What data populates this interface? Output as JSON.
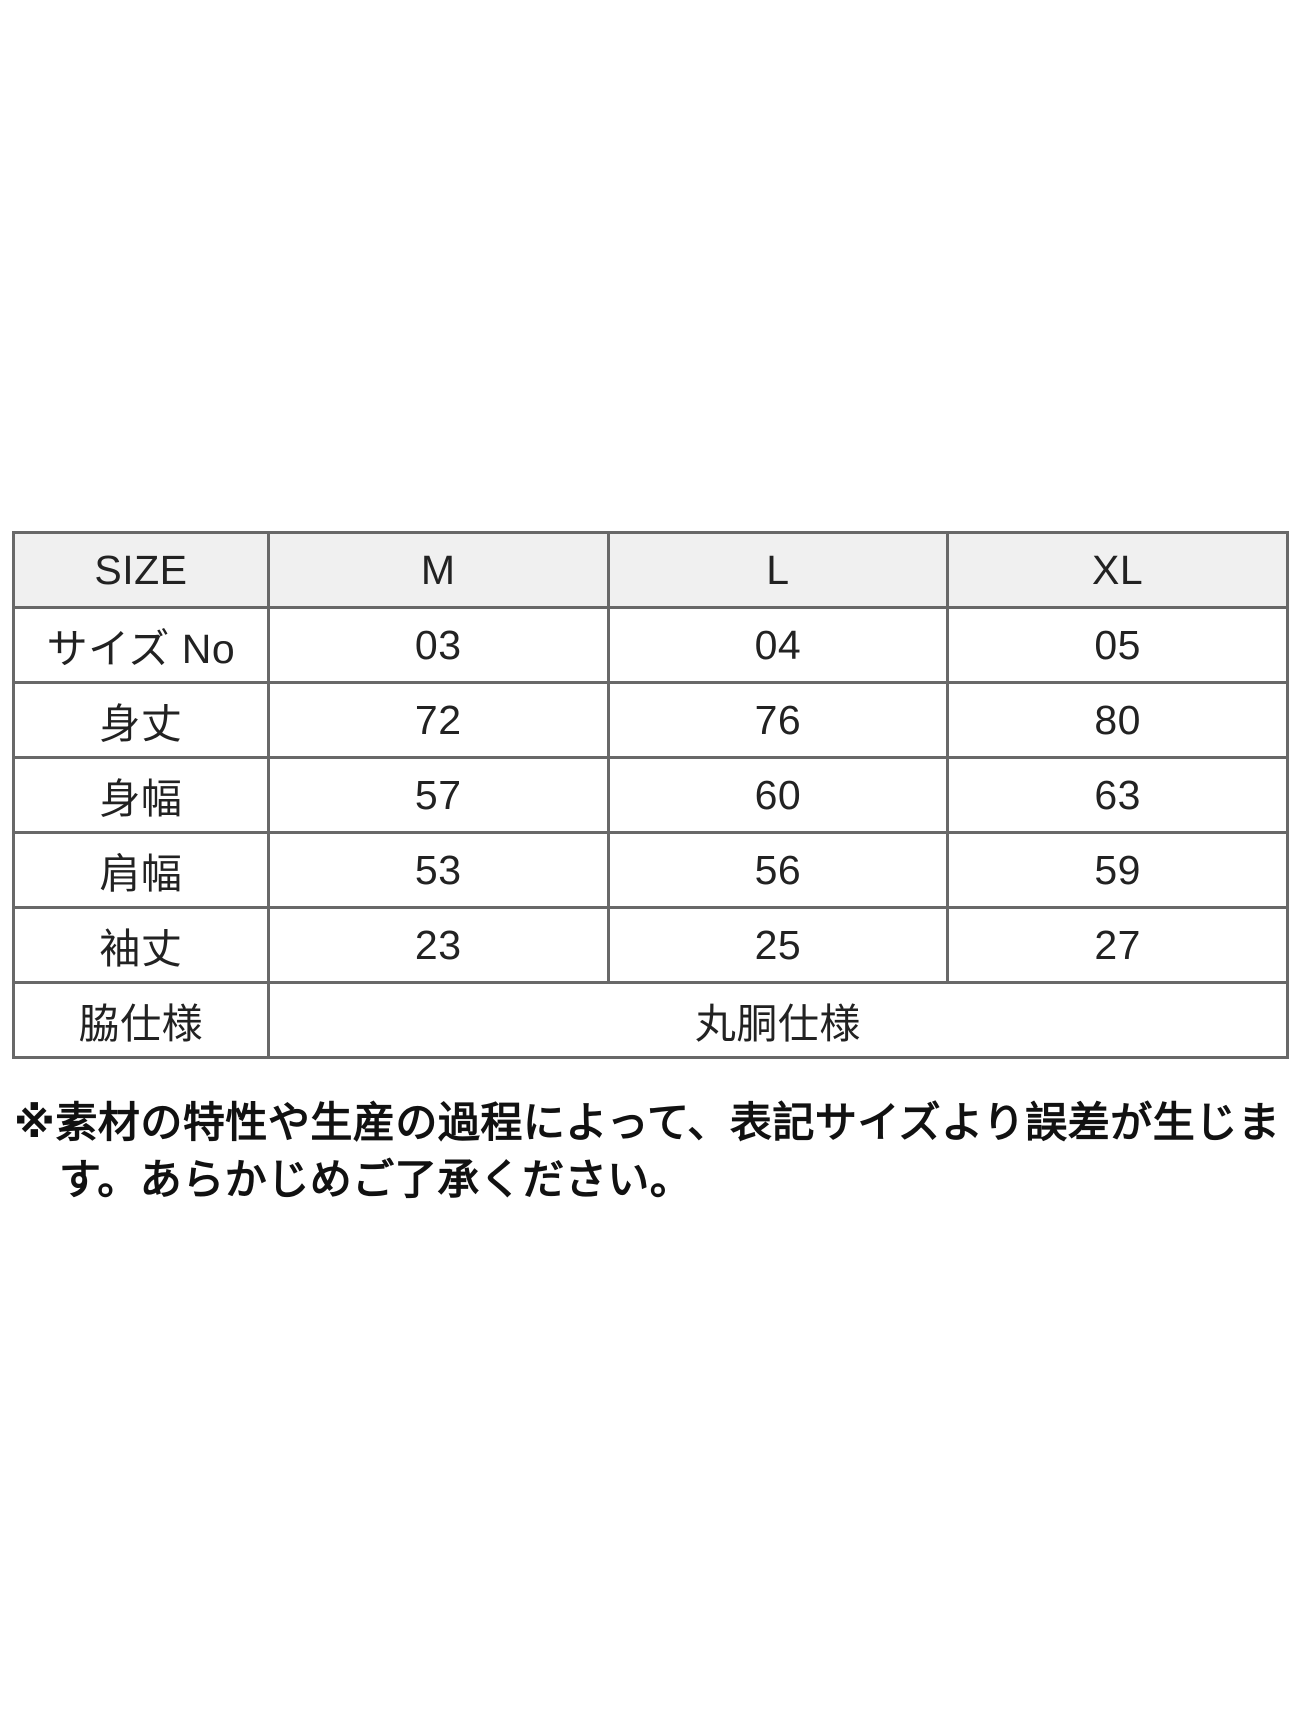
{
  "chart_data": {
    "type": "table",
    "columns": [
      "SIZE",
      "M",
      "L",
      "XL"
    ],
    "rows": [
      {
        "label": "サイズ No",
        "values": [
          "03",
          "04",
          "05"
        ]
      },
      {
        "label": "身丈",
        "values": [
          "72",
          "76",
          "80"
        ]
      },
      {
        "label": "身幅",
        "values": [
          "57",
          "60",
          "63"
        ]
      },
      {
        "label": "肩幅",
        "values": [
          "53",
          "56",
          "59"
        ]
      },
      {
        "label": "袖丈",
        "values": [
          "23",
          "25",
          "27"
        ]
      }
    ],
    "merged_row": {
      "label": "脇仕様",
      "value": "丸胴仕様"
    },
    "layout_hints": {
      "header_bg": "#f0f0f0",
      "border_color": "#686868",
      "text_color": "#222222",
      "grid": "on",
      "merged_value_spans_columns": [
        "M",
        "L",
        "XL"
      ]
    }
  },
  "note": {
    "lines": [
      "※素材の特性や生産の過程によって、表記サイズより誤差が生じま",
      "す。あらかじめご了承ください。"
    ]
  }
}
